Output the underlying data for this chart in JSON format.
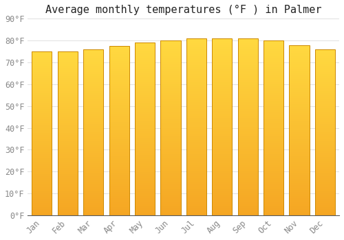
{
  "title": "Average monthly temperatures (°F ) in Palmer",
  "months": [
    "Jan",
    "Feb",
    "Mar",
    "Apr",
    "May",
    "Jun",
    "Jul",
    "Aug",
    "Sep",
    "Oct",
    "Nov",
    "Dec"
  ],
  "values": [
    75,
    75,
    76,
    77.5,
    79,
    80,
    81,
    81,
    81,
    80,
    78,
    76
  ],
  "ylim": [
    0,
    90
  ],
  "yticks": [
    0,
    10,
    20,
    30,
    40,
    50,
    60,
    70,
    80,
    90
  ],
  "bar_color_bottom": "#F5A623",
  "bar_color_top": "#FFD940",
  "bar_edge_color": "#CC8800",
  "bg_color": "#FFFFFF",
  "grid_color": "#E0E0E0",
  "title_fontsize": 11,
  "tick_fontsize": 8.5,
  "font_family": "monospace"
}
